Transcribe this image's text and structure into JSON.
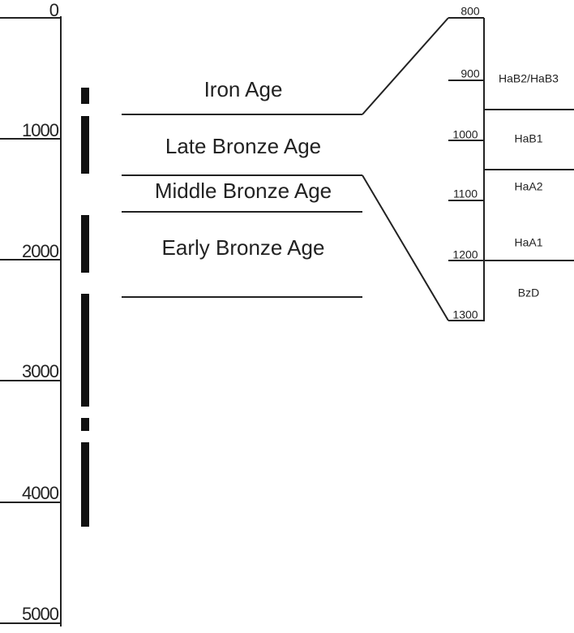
{
  "left_axis": {
    "labels": [
      0,
      1000,
      2000,
      3000,
      4000,
      5000
    ]
  },
  "ages": [
    "Iron Age",
    "Late Bronze Age",
    "Middle Bronze Age",
    "Early Bronze Age"
  ],
  "right_axis": {
    "labels": [
      800,
      900,
      1000,
      1100,
      1200,
      1300
    ]
  },
  "periods": [
    "HaB2/HaB3",
    "HaB1",
    "HaA2",
    "HaA1",
    "BzD"
  ]
}
